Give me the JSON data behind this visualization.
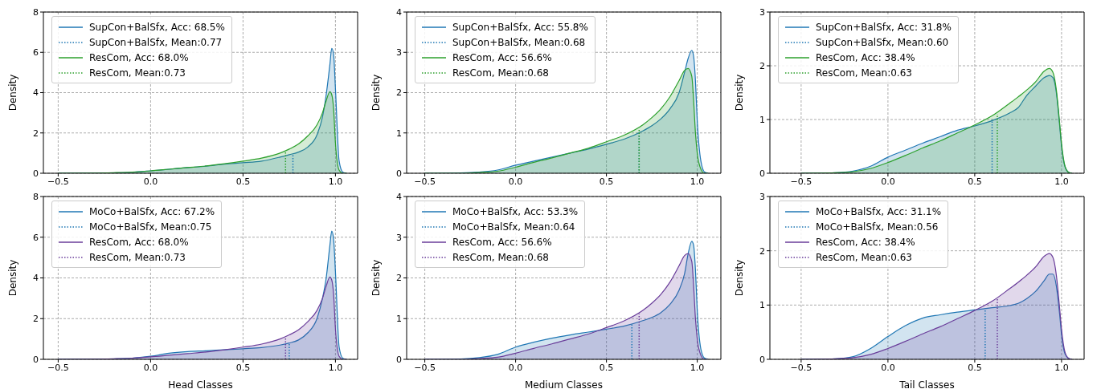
{
  "chart_data": [
    {
      "type": "area",
      "ylabel": "Density",
      "x": [
        -0.5,
        -0.3,
        -0.2,
        -0.1,
        0,
        0.1,
        0.2,
        0.3,
        0.4,
        0.5,
        0.6,
        0.7,
        0.75,
        0.8,
        0.85,
        0.9,
        0.93,
        0.95,
        0.97,
        0.98,
        0.99,
        1.0,
        1.02,
        1.04,
        1.06
      ],
      "xlim": [
        -0.58,
        1.12
      ],
      "xticks": [
        {
          "value": -0.5,
          "label": "−0.5"
        },
        {
          "value": 0,
          "label": "0.0"
        },
        {
          "value": 0.5,
          "label": "0.5"
        },
        {
          "value": 1,
          "label": "1.0"
        }
      ],
      "ylim": [
        0,
        8
      ],
      "yticks": [
        0,
        2,
        4,
        6,
        8
      ],
      "grid": true,
      "legend": "top left",
      "series": [
        {
          "name": "SupCon+BalSfx, Acc: 68.5%",
          "color": "#1f77b4",
          "type": "area",
          "line_style": "solid",
          "values": [
            0,
            0.01,
            0.02,
            0.05,
            0.12,
            0.2,
            0.28,
            0.35,
            0.45,
            0.52,
            0.6,
            0.8,
            0.92,
            1.05,
            1.3,
            1.9,
            2.8,
            3.9,
            5.4,
            6.2,
            5.9,
            4.2,
            0.6,
            0.05,
            0
          ]
        },
        {
          "name": "SupCon+BalSfx, Mean:0.77",
          "color": "#1f77b4",
          "type": "line",
          "line_style": "dotted",
          "x": [
            0.77,
            0.77
          ],
          "values": [
            0,
            0.95
          ]
        },
        {
          "name": "ResCom, Acc: 68.0%",
          "color": "#2ca02c",
          "type": "area",
          "line_style": "solid",
          "values": [
            0,
            0.01,
            0.03,
            0.06,
            0.12,
            0.2,
            0.28,
            0.36,
            0.47,
            0.6,
            0.75,
            1.0,
            1.2,
            1.45,
            1.85,
            2.4,
            3.0,
            3.6,
            4.05,
            3.9,
            3.2,
            1.5,
            0.15,
            0,
            0
          ]
        },
        {
          "name": "ResCom, Mean:0.73",
          "color": "#2ca02c",
          "type": "line",
          "line_style": "dotted",
          "x": [
            0.73,
            0.73
          ],
          "values": [
            0,
            1.1
          ]
        }
      ]
    },
    {
      "type": "area",
      "ylabel": "Density",
      "x": [
        -0.5,
        -0.3,
        -0.2,
        -0.1,
        0,
        0.1,
        0.2,
        0.3,
        0.4,
        0.5,
        0.6,
        0.7,
        0.75,
        0.8,
        0.85,
        0.9,
        0.93,
        0.95,
        0.97,
        0.98,
        0.99,
        1.0,
        1.02,
        1.04,
        1.06
      ],
      "xlim": [
        -0.6,
        1.13
      ],
      "xticks": [
        {
          "value": -0.5,
          "label": "−0.5"
        },
        {
          "value": 0,
          "label": "0.0"
        },
        {
          "value": 0.5,
          "label": "0.5"
        },
        {
          "value": 1,
          "label": "1.0"
        }
      ],
      "ylim": [
        0,
        4
      ],
      "yticks": [
        0,
        1,
        2,
        3,
        4
      ],
      "grid": true,
      "legend": "top left",
      "series": [
        {
          "name": "SupCon+BalSfx, Acc: 55.8%",
          "color": "#1f77b4",
          "type": "area",
          "line_style": "solid",
          "values": [
            0,
            0.01,
            0.03,
            0.08,
            0.2,
            0.3,
            0.4,
            0.5,
            0.6,
            0.72,
            0.85,
            1.05,
            1.18,
            1.35,
            1.6,
            2.0,
            2.5,
            2.85,
            3.05,
            2.9,
            2.3,
            1.3,
            0.3,
            0.03,
            0
          ]
        },
        {
          "name": "SupCon+BalSfx, Mean:0.68",
          "color": "#1f77b4",
          "type": "line",
          "line_style": "dotted",
          "x": [
            0.68,
            0.68
          ],
          "values": [
            0,
            1.0
          ]
        },
        {
          "name": "ResCom, Acc: 56.6%",
          "color": "#2ca02c",
          "type": "area",
          "line_style": "solid",
          "values": [
            0,
            0,
            0.02,
            0.05,
            0.15,
            0.27,
            0.38,
            0.5,
            0.62,
            0.78,
            0.95,
            1.2,
            1.38,
            1.6,
            1.9,
            2.3,
            2.55,
            2.6,
            2.4,
            1.8,
            1.0,
            0.5,
            0.1,
            0,
            0
          ]
        },
        {
          "name": "ResCom, Mean:0.68",
          "color": "#2ca02c",
          "type": "line",
          "line_style": "dotted",
          "x": [
            0.68,
            0.68
          ],
          "values": [
            0,
            1.1
          ]
        }
      ]
    },
    {
      "type": "area",
      "ylabel": "Density",
      "x": [
        -0.5,
        -0.3,
        -0.2,
        -0.1,
        0,
        0.1,
        0.2,
        0.3,
        0.4,
        0.5,
        0.6,
        0.7,
        0.75,
        0.8,
        0.85,
        0.9,
        0.93,
        0.95,
        0.97,
        0.98,
        0.99,
        1.0,
        1.02,
        1.04,
        1.06
      ],
      "xlim": [
        -0.68,
        1.13
      ],
      "xticks": [
        {
          "value": -0.5,
          "label": "−0.5"
        },
        {
          "value": 0,
          "label": "0.0"
        },
        {
          "value": 0.5,
          "label": "0.5"
        },
        {
          "value": 1,
          "label": "1.0"
        }
      ],
      "ylim": [
        0,
        3
      ],
      "yticks": [
        0,
        1,
        2,
        3
      ],
      "grid": true,
      "legend": "top left",
      "series": [
        {
          "name": "SupCon+BalSfx, Acc: 31.8%",
          "color": "#1f77b4",
          "type": "area",
          "line_style": "solid",
          "values": [
            0,
            0.01,
            0.04,
            0.13,
            0.3,
            0.43,
            0.56,
            0.68,
            0.8,
            0.88,
            0.98,
            1.12,
            1.22,
            1.45,
            1.62,
            1.78,
            1.82,
            1.78,
            1.5,
            1.2,
            0.85,
            0.5,
            0.12,
            0.02,
            0
          ]
        },
        {
          "name": "SupCon+BalSfx, Mean:0.60",
          "color": "#1f77b4",
          "type": "line",
          "line_style": "dotted",
          "x": [
            0.6,
            0.6
          ],
          "values": [
            0,
            1.0
          ]
        },
        {
          "name": "ResCom, Acc: 38.4%",
          "color": "#2ca02c",
          "type": "area",
          "line_style": "solid",
          "values": [
            0,
            0.01,
            0.03,
            0.09,
            0.2,
            0.33,
            0.47,
            0.6,
            0.75,
            0.9,
            1.07,
            1.3,
            1.42,
            1.55,
            1.7,
            1.9,
            1.95,
            1.88,
            1.55,
            1.25,
            0.9,
            0.55,
            0.13,
            0.02,
            0
          ]
        },
        {
          "name": "ResCom, Mean:0.63",
          "color": "#2ca02c",
          "type": "line",
          "line_style": "dotted",
          "x": [
            0.63,
            0.63
          ],
          "values": [
            0,
            1.1
          ]
        }
      ]
    },
    {
      "type": "area",
      "xlabel": "Head Classes",
      "ylabel": "Density",
      "x": [
        -0.5,
        -0.3,
        -0.2,
        -0.1,
        0,
        0.1,
        0.2,
        0.3,
        0.4,
        0.5,
        0.6,
        0.7,
        0.75,
        0.8,
        0.85,
        0.9,
        0.93,
        0.95,
        0.97,
        0.98,
        0.99,
        1.0,
        1.02,
        1.04,
        1.06
      ],
      "xlim": [
        -0.58,
        1.12
      ],
      "xticks": [
        {
          "value": -0.5,
          "label": "−0.5"
        },
        {
          "value": 0,
          "label": "0.0"
        },
        {
          "value": 0.5,
          "label": "0.5"
        },
        {
          "value": 1,
          "label": "1.0"
        }
      ],
      "ylim": [
        0,
        8
      ],
      "yticks": [
        0,
        2,
        4,
        6,
        8
      ],
      "grid": true,
      "legend": "top left",
      "series": [
        {
          "name": "MoCo+BalSfx, Acc: 67.2%",
          "color": "#1f77b4",
          "type": "area",
          "line_style": "solid",
          "values": [
            0,
            0.01,
            0.02,
            0.06,
            0.15,
            0.3,
            0.38,
            0.42,
            0.47,
            0.52,
            0.58,
            0.7,
            0.8,
            0.95,
            1.3,
            2.0,
            3.0,
            4.0,
            5.6,
            6.3,
            5.9,
            4.3,
            0.6,
            0.05,
            0
          ]
        },
        {
          "name": "MoCo+BalSfx, Mean:0.75",
          "color": "#1f77b4",
          "type": "line",
          "line_style": "dotted",
          "x": [
            0.75,
            0.75
          ],
          "values": [
            0,
            0.8
          ]
        },
        {
          "name": "ResCom, Acc: 68.0%",
          "color": "#6a3d9a",
          "type": "area",
          "line_style": "solid",
          "values": [
            0,
            0.01,
            0.03,
            0.06,
            0.12,
            0.2,
            0.28,
            0.36,
            0.47,
            0.6,
            0.75,
            1.0,
            1.2,
            1.45,
            1.85,
            2.4,
            3.0,
            3.6,
            4.05,
            3.9,
            3.2,
            1.5,
            0.15,
            0,
            0
          ]
        },
        {
          "name": "ResCom, Mean:0.73",
          "color": "#6a3d9a",
          "type": "line",
          "line_style": "dotted",
          "x": [
            0.73,
            0.73
          ],
          "values": [
            0,
            1.1
          ]
        }
      ]
    },
    {
      "type": "area",
      "xlabel": "Medium Classes",
      "ylabel": "Density",
      "x": [
        -0.5,
        -0.3,
        -0.2,
        -0.1,
        0,
        0.1,
        0.2,
        0.3,
        0.4,
        0.5,
        0.6,
        0.7,
        0.75,
        0.8,
        0.85,
        0.9,
        0.93,
        0.95,
        0.97,
        0.98,
        0.99,
        1.0,
        1.02,
        1.04,
        1.06
      ],
      "xlim": [
        -0.6,
        1.13
      ],
      "xticks": [
        {
          "value": -0.5,
          "label": "−0.5"
        },
        {
          "value": 0,
          "label": "0.0"
        },
        {
          "value": 0.5,
          "label": "0.5"
        },
        {
          "value": 1,
          "label": "1.0"
        }
      ],
      "ylim": [
        0,
        4
      ],
      "yticks": [
        0,
        1,
        2,
        3,
        4
      ],
      "grid": true,
      "legend": "top left",
      "series": [
        {
          "name": "MoCo+BalSfx, Acc: 53.3%",
          "color": "#1f77b4",
          "type": "area",
          "line_style": "solid",
          "values": [
            0,
            0.01,
            0.04,
            0.12,
            0.3,
            0.42,
            0.52,
            0.6,
            0.67,
            0.74,
            0.82,
            0.95,
            1.03,
            1.15,
            1.35,
            1.7,
            2.1,
            2.6,
            2.9,
            2.8,
            2.2,
            1.2,
            0.25,
            0.03,
            0
          ]
        },
        {
          "name": "MoCo+BalSfx, Mean:0.64",
          "color": "#1f77b4",
          "type": "line",
          "line_style": "dotted",
          "x": [
            0.64,
            0.64
          ],
          "values": [
            0,
            0.88
          ]
        },
        {
          "name": "ResCom, Acc: 56.6%",
          "color": "#6a3d9a",
          "type": "area",
          "line_style": "solid",
          "values": [
            0,
            0,
            0.02,
            0.05,
            0.15,
            0.27,
            0.38,
            0.5,
            0.62,
            0.78,
            0.95,
            1.2,
            1.38,
            1.6,
            1.9,
            2.3,
            2.55,
            2.6,
            2.4,
            1.8,
            1.0,
            0.5,
            0.1,
            0,
            0
          ]
        },
        {
          "name": "ResCom, Mean:0.68",
          "color": "#6a3d9a",
          "type": "line",
          "line_style": "dotted",
          "x": [
            0.68,
            0.68
          ],
          "values": [
            0,
            1.12
          ]
        }
      ]
    },
    {
      "type": "area",
      "xlabel": "Tail Classes",
      "ylabel": "Density",
      "x": [
        -0.5,
        -0.3,
        -0.2,
        -0.1,
        0,
        0.1,
        0.2,
        0.3,
        0.4,
        0.5,
        0.6,
        0.7,
        0.75,
        0.8,
        0.85,
        0.9,
        0.93,
        0.95,
        0.97,
        0.98,
        0.99,
        1.0,
        1.02,
        1.04,
        1.06
      ],
      "xlim": [
        -0.68,
        1.13
      ],
      "xticks": [
        {
          "value": -0.5,
          "label": "−0.5"
        },
        {
          "value": 0,
          "label": "0.0"
        },
        {
          "value": 0.5,
          "label": "0.5"
        },
        {
          "value": 1,
          "label": "1.0"
        }
      ],
      "ylim": [
        0,
        3
      ],
      "yticks": [
        0,
        1,
        2,
        3
      ],
      "grid": true,
      "legend": "top left",
      "series": [
        {
          "name": "MoCo+BalSfx, Acc: 31.1%",
          "color": "#1f77b4",
          "type": "area",
          "line_style": "solid",
          "values": [
            0,
            0.01,
            0.05,
            0.2,
            0.42,
            0.62,
            0.76,
            0.82,
            0.87,
            0.91,
            0.95,
            0.99,
            1.03,
            1.12,
            1.25,
            1.45,
            1.57,
            1.57,
            1.35,
            1.1,
            0.8,
            0.45,
            0.1,
            0.02,
            0
          ]
        },
        {
          "name": "MoCo+BalSfx, Mean:0.56",
          "color": "#1f77b4",
          "type": "line",
          "line_style": "dotted",
          "x": [
            0.56,
            0.56
          ],
          "values": [
            0,
            0.94
          ]
        },
        {
          "name": "ResCom, Acc: 38.4%",
          "color": "#6a3d9a",
          "type": "area",
          "line_style": "solid",
          "values": [
            0,
            0.01,
            0.03,
            0.09,
            0.2,
            0.33,
            0.47,
            0.6,
            0.75,
            0.9,
            1.07,
            1.3,
            1.42,
            1.55,
            1.7,
            1.9,
            1.95,
            1.88,
            1.55,
            1.25,
            0.9,
            0.55,
            0.13,
            0.02,
            0
          ]
        },
        {
          "name": "ResCom, Mean:0.63",
          "color": "#6a3d9a",
          "type": "line",
          "line_style": "dotted",
          "x": [
            0.63,
            0.63
          ],
          "values": [
            0,
            1.12
          ]
        }
      ]
    }
  ]
}
